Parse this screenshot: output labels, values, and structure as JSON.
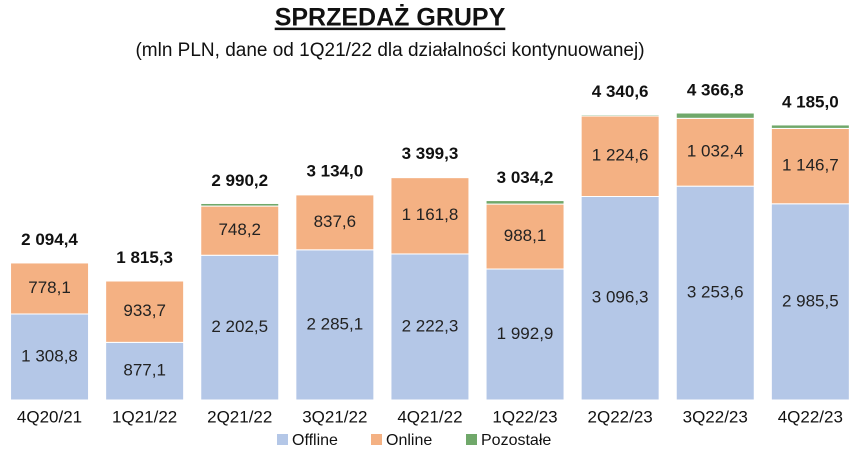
{
  "chart_data": {
    "type": "bar",
    "stacked": true,
    "title": "SPRZEDAŻ GRUPY",
    "subtitle": "(mln PLN, dane od 1Q21/22 dla działalności kontynuowanej)",
    "categories": [
      "4Q20/21",
      "1Q21/22",
      "2Q21/22",
      "3Q21/22",
      "4Q21/22",
      "1Q22/23",
      "2Q22/23",
      "3Q22/23",
      "4Q22/23"
    ],
    "series": [
      {
        "name": "Offline",
        "color": "#b4c7e7",
        "values": [
          1308.8,
          877.1,
          2202.5,
          2285.1,
          2222.3,
          1992.9,
          3096.3,
          3253.6,
          2985.5
        ],
        "value_labels": [
          "1 308,8",
          "877,1",
          "2 202,5",
          "2 285,1",
          "2 222,3",
          "1 992,9",
          "3 096,3",
          "3 253,6",
          "2 985,5"
        ]
      },
      {
        "name": "Online",
        "color": "#f4b183",
        "values": [
          778.1,
          933.7,
          748.2,
          837.6,
          1161.8,
          988.1,
          1224.6,
          1032.4,
          1146.7
        ],
        "value_labels": [
          "778,1",
          "933,7",
          "748,2",
          "837,6",
          "1 161,8",
          "988,1",
          "1 224,6",
          "1 032,4",
          "1 146,7"
        ]
      },
      {
        "name": "Pozostałe",
        "color": "#70a86a",
        "values": [
          7.5,
          4.5,
          39.5,
          11.3,
          15.2,
          53.2,
          19.7,
          80.8,
          52.8
        ]
      }
    ],
    "totals": [
      2094.4,
      1815.3,
      2990.2,
      3134.0,
      3399.3,
      3034.2,
      4340.6,
      4366.8,
      4185.0
    ],
    "total_labels": [
      "2 094,4",
      "1 815,3",
      "2 990,2",
      "3 134,0",
      "3 399,3",
      "3 034,2",
      "4 340,6",
      "4 366,8",
      "4 185,0"
    ]
  }
}
